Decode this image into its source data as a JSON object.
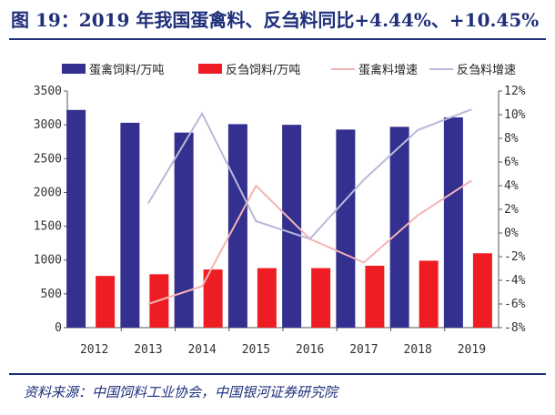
{
  "title": "图 19：2019 年我国蛋禽料、反刍料同比+4.44%、+10.45%",
  "source": "资料来源：中国饲料工业协会，中国银河证券研究院",
  "chart_data": {
    "type": "bar",
    "categories": [
      "2012",
      "2013",
      "2014",
      "2015",
      "2016",
      "2017",
      "2018",
      "2019"
    ],
    "series": [
      {
        "name": "蛋禽饲料/万吨",
        "kind": "bar",
        "axis": "left",
        "color": "#33308f",
        "values": [
          3220,
          3030,
          2885,
          3010,
          3000,
          2930,
          2970,
          3110
        ]
      },
      {
        "name": "反刍饲料/万吨",
        "kind": "bar",
        "axis": "left",
        "color": "#ee1d23",
        "values": [
          765,
          790,
          860,
          880,
          880,
          915,
          990,
          1100
        ]
      },
      {
        "name": "蛋禽料增速",
        "kind": "line",
        "axis": "right",
        "color": "#f4b3b3",
        "values": [
          null,
          -6.0,
          -4.5,
          4.0,
          -0.5,
          -2.5,
          1.5,
          4.44
        ]
      },
      {
        "name": "反刍料增速",
        "kind": "line",
        "axis": "right",
        "color": "#b9b9d9",
        "values": [
          null,
          2.5,
          10.1,
          1.0,
          -0.5,
          4.5,
          8.7,
          10.45
        ]
      }
    ],
    "ylim_left": [
      0,
      3500
    ],
    "yticks_left": [
      "0",
      "500",
      "1000",
      "1500",
      "2000",
      "2500",
      "3000",
      "3500"
    ],
    "ylim_right": [
      -8,
      12
    ],
    "yticks_right": [
      "-8%",
      "-6%",
      "-4%",
      "-2%",
      "0%",
      "2%",
      "4%",
      "6%",
      "8%",
      "10%",
      "12%"
    ],
    "legend": "top",
    "grid": false
  }
}
